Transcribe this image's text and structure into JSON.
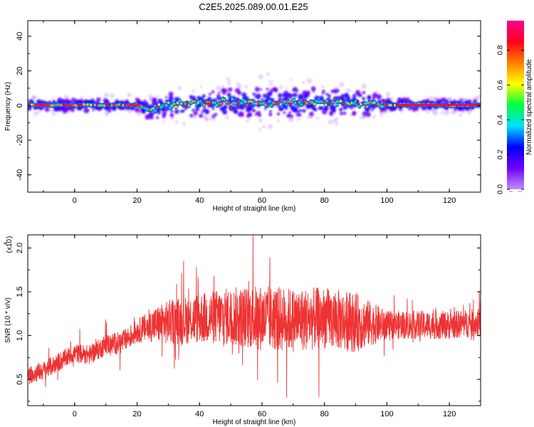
{
  "figure": {
    "title": "C2E5.2025.089.00.01.E25"
  },
  "chart_data": [
    {
      "type": "heatmap",
      "title": "C2E5.2025.089.00.01.E25",
      "xlabel": "Height of straight line (km)",
      "ylabel": "Frequency (Hz)",
      "xlim": [
        -15,
        130
      ],
      "ylim": [
        -50,
        49
      ],
      "xticks": [
        0,
        20,
        40,
        60,
        80,
        100,
        120
      ],
      "yticks": [
        -40,
        -20,
        0,
        20,
        40
      ],
      "grid": false,
      "description_of_values": "spectrogram energy concentrated along 0 Hz; spread roughly +-5 Hz from 25 to 100 km, narrower elsewhere",
      "colorbar": {
        "label": "Normalized spectral amplitude",
        "range": [
          0.0,
          0.97
        ],
        "ticks": [
          0.0,
          0.2,
          0.4,
          0.6,
          0.8
        ],
        "colormap": [
          "#c090f0",
          "#7000ff",
          "#0000ff",
          "#00e0ff",
          "#00ff40",
          "#ffff00",
          "#ff8000",
          "#ff0020",
          "#ff0090"
        ]
      }
    },
    {
      "type": "line",
      "xlabel": "Height of straight line (km)",
      "ylabel": "SNR (10 * v/v)",
      "y_multiplier": "(x10",
      "y_multiplier_exp": "4",
      "xlim": [
        -15,
        130
      ],
      "ylim": [
        0.2,
        2.15
      ],
      "xticks": [
        0,
        20,
        40,
        60,
        80,
        100,
        120
      ],
      "yticks": [
        0.5,
        1.0,
        1.5,
        2.0
      ],
      "ytick_labels": [
        "0.5",
        "1.0",
        "1.5",
        "2.0"
      ],
      "line_color": "#ee3333",
      "envelope": {
        "x": [
          -15,
          -10,
          -5,
          0,
          5,
          10,
          15,
          20,
          25,
          30,
          40,
          50,
          60,
          70,
          80,
          90,
          100,
          110,
          120,
          130
        ],
        "y": [
          0.55,
          0.6,
          0.7,
          0.8,
          0.78,
          0.9,
          0.92,
          1.05,
          1.12,
          1.15,
          1.2,
          1.22,
          1.2,
          1.18,
          1.2,
          1.15,
          1.12,
          1.12,
          1.12,
          1.15
        ]
      },
      "spread": {
        "x": [
          -15,
          0,
          20,
          30,
          60,
          90,
          100,
          130
        ],
        "y": [
          0.12,
          0.12,
          0.15,
          0.28,
          0.42,
          0.38,
          0.18,
          0.18
        ]
      }
    }
  ]
}
